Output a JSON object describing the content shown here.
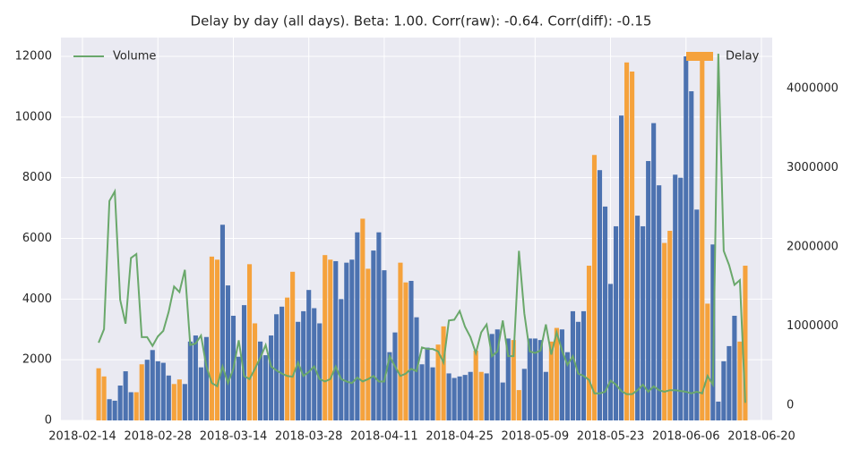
{
  "chart_data": {
    "type": "bar",
    "title": "Delay by day (all days). Beta: 1.00. Corr(raw): -0.64. Corr(diff): -0.15",
    "x": [
      "2018-02-17",
      "2018-02-18",
      "2018-02-19",
      "2018-02-20",
      "2018-02-21",
      "2018-02-22",
      "2018-02-23",
      "2018-02-24",
      "2018-02-25",
      "2018-02-26",
      "2018-02-27",
      "2018-02-28",
      "2018-03-01",
      "2018-03-02",
      "2018-03-03",
      "2018-03-04",
      "2018-03-05",
      "2018-03-06",
      "2018-03-07",
      "2018-03-08",
      "2018-03-09",
      "2018-03-10",
      "2018-03-11",
      "2018-03-12",
      "2018-03-13",
      "2018-03-14",
      "2018-03-15",
      "2018-03-16",
      "2018-03-17",
      "2018-03-18",
      "2018-03-19",
      "2018-03-20",
      "2018-03-21",
      "2018-03-22",
      "2018-03-23",
      "2018-03-24",
      "2018-03-25",
      "2018-03-26",
      "2018-03-27",
      "2018-03-28",
      "2018-03-29",
      "2018-03-30",
      "2018-03-31",
      "2018-04-01",
      "2018-04-02",
      "2018-04-03",
      "2018-04-04",
      "2018-04-05",
      "2018-04-06",
      "2018-04-07",
      "2018-04-08",
      "2018-04-09",
      "2018-04-10",
      "2018-04-11",
      "2018-04-12",
      "2018-04-13",
      "2018-04-14",
      "2018-04-15",
      "2018-04-16",
      "2018-04-17",
      "2018-04-18",
      "2018-04-19",
      "2018-04-20",
      "2018-04-21",
      "2018-04-22",
      "2018-04-23",
      "2018-04-24",
      "2018-04-25",
      "2018-04-26",
      "2018-04-27",
      "2018-04-28",
      "2018-04-29",
      "2018-04-30",
      "2018-05-01",
      "2018-05-02",
      "2018-05-03",
      "2018-05-04",
      "2018-05-05",
      "2018-05-06",
      "2018-05-07",
      "2018-05-08",
      "2018-05-09",
      "2018-05-10",
      "2018-05-11",
      "2018-05-12",
      "2018-05-13",
      "2018-05-14",
      "2018-05-15",
      "2018-05-16",
      "2018-05-17",
      "2018-05-18",
      "2018-05-19",
      "2018-05-20",
      "2018-05-21",
      "2018-05-22",
      "2018-05-23",
      "2018-05-24",
      "2018-05-25",
      "2018-05-26",
      "2018-05-27",
      "2018-05-28",
      "2018-05-29",
      "2018-05-30",
      "2018-05-31",
      "2018-06-01",
      "2018-06-02",
      "2018-06-03",
      "2018-06-04",
      "2018-06-05",
      "2018-06-06",
      "2018-06-07",
      "2018-06-08",
      "2018-06-09",
      "2018-06-10",
      "2018-06-11",
      "2018-06-12",
      "2018-06-13",
      "2018-06-14",
      "2018-06-15",
      "2018-06-16",
      "2018-06-17"
    ],
    "series": [
      {
        "name": "Delay",
        "type": "bar",
        "color": "#f5a23c",
        "legend": "upper right",
        "bar_colors": [
          "#f5a23c",
          "#f5a23c",
          "#4c72b0",
          "#4c72b0",
          "#4c72b0",
          "#4c72b0",
          "#4c72b0",
          "#f5a23c",
          "#f5a23c",
          "#4c72b0",
          "#4c72b0",
          "#4c72b0",
          "#4c72b0",
          "#4c72b0",
          "#f5a23c",
          "#f5a23c",
          "#4c72b0",
          "#4c72b0",
          "#4c72b0",
          "#4c72b0",
          "#4c72b0",
          "#f5a23c",
          "#f5a23c",
          "#4c72b0",
          "#4c72b0",
          "#4c72b0",
          "#4c72b0",
          "#4c72b0",
          "#f5a23c",
          "#f5a23c",
          "#4c72b0",
          "#4c72b0",
          "#4c72b0",
          "#4c72b0",
          "#4c72b0",
          "#f5a23c",
          "#f5a23c",
          "#4c72b0",
          "#4c72b0",
          "#4c72b0",
          "#4c72b0",
          "#4c72b0",
          "#f5a23c",
          "#f5a23c",
          "#4c72b0",
          "#4c72b0",
          "#4c72b0",
          "#4c72b0",
          "#4c72b0",
          "#f5a23c",
          "#f5a23c",
          "#4c72b0",
          "#4c72b0",
          "#4c72b0",
          "#4c72b0",
          "#4c72b0",
          "#f5a23c",
          "#f5a23c",
          "#4c72b0",
          "#4c72b0",
          "#4c72b0",
          "#4c72b0",
          "#4c72b0",
          "#f5a23c",
          "#f5a23c",
          "#4c72b0",
          "#4c72b0",
          "#4c72b0",
          "#4c72b0",
          "#4c72b0",
          "#f5a23c",
          "#f5a23c",
          "#4c72b0",
          "#4c72b0",
          "#4c72b0",
          "#4c72b0",
          "#4c72b0",
          "#f5a23c",
          "#f5a23c",
          "#4c72b0",
          "#4c72b0",
          "#4c72b0",
          "#4c72b0",
          "#4c72b0",
          "#f5a23c",
          "#f5a23c",
          "#4c72b0",
          "#4c72b0",
          "#4c72b0",
          "#4c72b0",
          "#4c72b0",
          "#f5a23c",
          "#f5a23c",
          "#4c72b0",
          "#4c72b0",
          "#4c72b0",
          "#4c72b0",
          "#4c72b0",
          "#f5a23c",
          "#f5a23c",
          "#4c72b0",
          "#4c72b0",
          "#4c72b0",
          "#4c72b0",
          "#4c72b0",
          "#f5a23c",
          "#f5a23c",
          "#4c72b0",
          "#4c72b0",
          "#4c72b0",
          "#4c72b0",
          "#4c72b0",
          "#f5a23c",
          "#f5a23c",
          "#4c72b0",
          "#4c72b0",
          "#4c72b0",
          "#4c72b0",
          "#4c72b0",
          "#f5a23c",
          "#f5a23c"
        ],
        "values": [
          1720,
          1450,
          700,
          650,
          1150,
          1620,
          930,
          930,
          1850,
          2000,
          2320,
          1950,
          1900,
          1480,
          1200,
          1350,
          1200,
          2600,
          2800,
          1750,
          2750,
          5400,
          5300,
          6450,
          4450,
          3450,
          2100,
          3800,
          5150,
          3200,
          2600,
          2150,
          2800,
          3500,
          3750,
          4050,
          4900,
          3250,
          3600,
          4300,
          3700,
          3200,
          5450,
          5300,
          5250,
          4000,
          5200,
          5300,
          6200,
          6650,
          5000,
          5600,
          6200,
          4950,
          2250,
          2900,
          5200,
          4550,
          4600,
          3400,
          1850,
          2400,
          1750,
          2500,
          3100,
          1550,
          1400,
          1450,
          1500,
          1600,
          2300,
          1600,
          1550,
          2850,
          3000,
          1250,
          2700,
          2650,
          1000,
          1700,
          2700,
          2700,
          2650,
          1600,
          2600,
          3050,
          3000,
          2250,
          3600,
          3250,
          3600,
          5100,
          8750,
          8250,
          7050,
          4500,
          6400,
          10050,
          11800,
          11500,
          6750,
          6400,
          8550,
          9800,
          7750,
          5850,
          6250,
          8100,
          8000,
          12000,
          10850,
          6950,
          12100,
          3850,
          5800,
          620,
          1950,
          2450,
          3450,
          2600,
          5100
        ]
      },
      {
        "name": "Volume",
        "type": "line",
        "axis": "y2",
        "color": "#6aa86b",
        "legend": "upper left",
        "values": [
          790000,
          960000,
          2580000,
          2700000,
          1330000,
          1030000,
          1860000,
          1910000,
          860000,
          860000,
          750000,
          870000,
          940000,
          1180000,
          1500000,
          1430000,
          1710000,
          760000,
          780000,
          880000,
          490000,
          280000,
          240000,
          490000,
          280000,
          460000,
          820000,
          370000,
          330000,
          460000,
          600000,
          760000,
          490000,
          440000,
          400000,
          370000,
          360000,
          540000,
          370000,
          420000,
          490000,
          330000,
          300000,
          330000,
          490000,
          330000,
          300000,
          280000,
          350000,
          300000,
          330000,
          370000,
          300000,
          300000,
          620000,
          490000,
          370000,
          400000,
          460000,
          430000,
          730000,
          710000,
          710000,
          680000,
          540000,
          1070000,
          1080000,
          1190000,
          990000,
          860000,
          660000,
          920000,
          1020000,
          620000,
          680000,
          1070000,
          620000,
          620000,
          1950000,
          1160000,
          680000,
          660000,
          690000,
          1020000,
          640000,
          920000,
          690000,
          510000,
          620000,
          400000,
          370000,
          320000,
          150000,
          150000,
          170000,
          310000,
          260000,
          180000,
          140000,
          140000,
          190000,
          260000,
          170000,
          240000,
          190000,
          170000,
          190000,
          190000,
          180000,
          170000,
          150000,
          170000,
          150000,
          370000,
          260000,
          4440000,
          1950000,
          1770000,
          1520000,
          1580000,
          30000
        ]
      }
    ],
    "xlim": [
      "2018-02-10",
      "2018-06-22"
    ],
    "xticks": [
      "2018-02-14",
      "2018-02-28",
      "2018-03-14",
      "2018-03-28",
      "2018-04-11",
      "2018-04-25",
      "2018-05-09",
      "2018-05-23",
      "2018-06-06",
      "2018-06-20"
    ],
    "ylim": [
      0,
      12620
    ],
    "yticks": [
      0,
      2000,
      4000,
      6000,
      8000,
      10000,
      12000
    ],
    "y2lim": [
      -192000,
      4644000
    ],
    "y2ticks": [
      0,
      1000000,
      2000000,
      3000000,
      4000000
    ],
    "grid": true
  }
}
